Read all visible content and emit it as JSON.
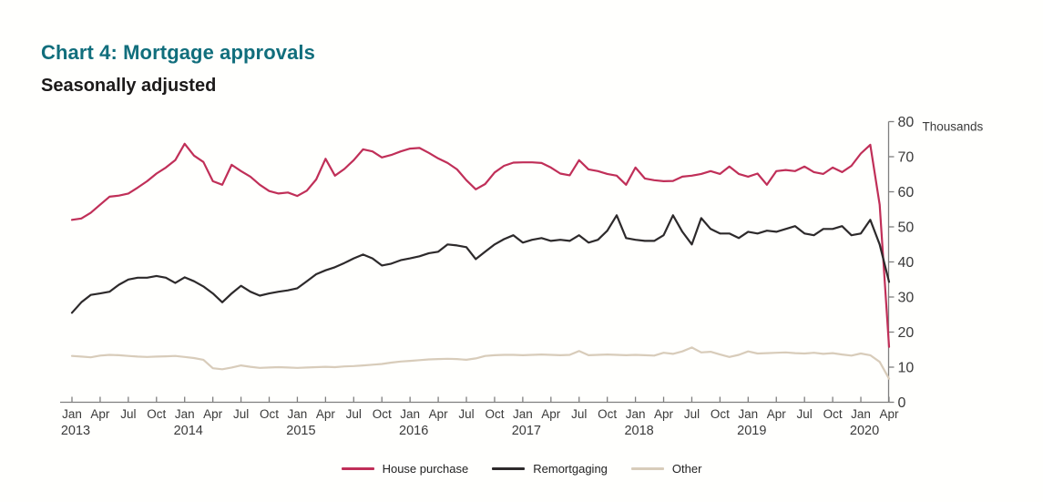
{
  "header": {
    "title": "Chart 4: Mortgage approvals",
    "subtitle": "Seasonally adjusted",
    "title_color": "#116e7c"
  },
  "chart_data": {
    "type": "line",
    "title": "Chart 4: Mortgage approvals",
    "subtitle": "Seasonally adjusted",
    "unit_label": "Thousands",
    "frequency": "monthly",
    "x_start": "Jan 2013",
    "x_end": "Apr 2020",
    "x_tick_months": [
      "Jan",
      "Apr",
      "Jul",
      "Oct"
    ],
    "x_tick_years": [
      "2013",
      "2014",
      "2015",
      "2016",
      "2017",
      "2018",
      "2019",
      "2020"
    ],
    "ylim": [
      0,
      80
    ],
    "y_tick_step": 10,
    "grid": "off",
    "y_axis_side": "right",
    "legend_position": "bottom",
    "axis_color": "#7f7f7f",
    "label_color": "#3a3a3a",
    "series": [
      {
        "name": "House purchase",
        "color": "#c02f58",
        "values": [
          52.0,
          52.4,
          54.0,
          56.3,
          58.6,
          58.9,
          59.5,
          61.2,
          63.0,
          65.2,
          66.9,
          69.0,
          73.7,
          70.3,
          68.5,
          63.0,
          62.0,
          67.7,
          65.9,
          64.3,
          62.0,
          60.2,
          59.5,
          59.8,
          58.8,
          60.3,
          63.5,
          69.4,
          64.6,
          66.5,
          69.0,
          72.1,
          71.5,
          69.8,
          70.5,
          71.5,
          72.3,
          72.5,
          71.1,
          69.5,
          68.2,
          66.4,
          63.3,
          60.7,
          62.2,
          65.5,
          67.4,
          68.3,
          68.4,
          68.4,
          68.2,
          66.9,
          65.2,
          64.7,
          69.0,
          66.4,
          65.9,
          65.1,
          64.6,
          62.0,
          66.9,
          63.8,
          63.3,
          63.0,
          63.1,
          64.3,
          64.6,
          65.1,
          65.9,
          65.1,
          67.2,
          65.1,
          64.3,
          65.2,
          62.0,
          65.9,
          66.2,
          65.9,
          67.2,
          65.6,
          65.1,
          66.9,
          65.6,
          67.4,
          70.9,
          73.4,
          56.3,
          15.8
        ]
      },
      {
        "name": "Remortgaging",
        "color": "#2d2a2b",
        "values": [
          25.5,
          28.5,
          30.6,
          31.0,
          31.5,
          33.5,
          35.0,
          35.5,
          35.5,
          36.0,
          35.5,
          34.0,
          35.6,
          34.5,
          33.0,
          31.0,
          28.5,
          31.0,
          33.2,
          31.5,
          30.4,
          31.0,
          31.5,
          31.9,
          32.5,
          34.5,
          36.5,
          37.6,
          38.5,
          39.7,
          41.0,
          42.1,
          41.0,
          39.0,
          39.5,
          40.5,
          41.0,
          41.6,
          42.5,
          42.9,
          45.0,
          44.7,
          44.2,
          40.8,
          42.9,
          45.0,
          46.5,
          47.6,
          45.5,
          46.3,
          46.8,
          46.0,
          46.3,
          46.0,
          47.6,
          45.5,
          46.3,
          48.9,
          53.3,
          46.8,
          46.3,
          46.0,
          46.0,
          47.6,
          53.3,
          48.6,
          45.0,
          52.5,
          49.4,
          48.1,
          48.1,
          46.8,
          48.6,
          48.1,
          48.9,
          48.6,
          49.4,
          50.2,
          48.1,
          47.6,
          49.4,
          49.4,
          50.2,
          47.6,
          48.1,
          52.0,
          45.0,
          34.3
        ]
      },
      {
        "name": "Other",
        "color": "#d8ccba",
        "values": [
          13.2,
          13.0,
          12.8,
          13.3,
          13.5,
          13.4,
          13.2,
          13.0,
          12.9,
          13.0,
          13.1,
          13.2,
          12.9,
          12.6,
          12.1,
          9.7,
          9.4,
          9.9,
          10.5,
          10.1,
          9.8,
          9.9,
          10.0,
          9.9,
          9.8,
          9.9,
          10.0,
          10.1,
          10.0,
          10.2,
          10.3,
          10.5,
          10.7,
          10.9,
          11.3,
          11.6,
          11.8,
          12.0,
          12.2,
          12.3,
          12.4,
          12.3,
          12.1,
          12.5,
          13.2,
          13.4,
          13.5,
          13.5,
          13.4,
          13.5,
          13.6,
          13.5,
          13.4,
          13.5,
          14.6,
          13.4,
          13.5,
          13.6,
          13.5,
          13.4,
          13.5,
          13.4,
          13.3,
          14.1,
          13.8,
          14.5,
          15.6,
          14.2,
          14.4,
          13.6,
          12.9,
          13.5,
          14.5,
          13.9,
          14.0,
          14.1,
          14.2,
          14.0,
          13.9,
          14.1,
          13.8,
          14.0,
          13.6,
          13.3,
          13.9,
          13.4,
          11.5,
          6.7
        ]
      }
    ]
  }
}
